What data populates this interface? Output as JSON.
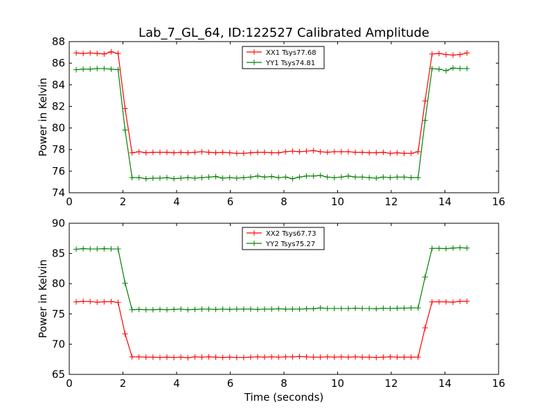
{
  "title": "Lab_7_GL_64, ID:122527 Calibrated Amplitude",
  "chart_data": [
    {
      "type": "line",
      "title": "Lab_7_GL_64, ID:122527 Calibrated Amplitude",
      "xlabel": "",
      "ylabel": "Power in Kelvin",
      "xlim": [
        0,
        16
      ],
      "ylim": [
        74,
        88
      ],
      "xticks": [
        0,
        2,
        4,
        6,
        8,
        10,
        12,
        14,
        16
      ],
      "yticks": [
        74,
        76,
        78,
        80,
        82,
        84,
        86,
        88
      ],
      "grid": false,
      "legend_position": "top-center",
      "x": [
        0.26,
        0.52,
        0.78,
        1.04,
        1.3,
        1.56,
        1.82,
        2.08,
        2.34,
        2.6,
        2.86,
        3.12,
        3.38,
        3.64,
        3.9,
        4.16,
        4.42,
        4.68,
        4.94,
        5.2,
        5.46,
        5.72,
        5.98,
        6.24,
        6.5,
        6.76,
        7.02,
        7.28,
        7.54,
        7.8,
        8.06,
        8.32,
        8.58,
        8.84,
        9.1,
        9.36,
        9.62,
        9.88,
        10.14,
        10.4,
        10.66,
        10.92,
        11.18,
        11.44,
        11.7,
        11.96,
        12.22,
        12.48,
        12.74,
        13.0,
        13.26,
        13.52,
        13.78,
        14.04,
        14.3,
        14.56,
        14.82
      ],
      "series": [
        {
          "name": "XX1 Tsys77.68",
          "color": "#ff0000",
          "values": [
            86.95,
            86.9,
            86.95,
            86.9,
            86.85,
            87.05,
            86.9,
            81.8,
            77.7,
            77.8,
            77.7,
            77.75,
            77.75,
            77.75,
            77.7,
            77.75,
            77.7,
            77.75,
            77.8,
            77.75,
            77.7,
            77.75,
            77.7,
            77.65,
            77.65,
            77.7,
            77.75,
            77.75,
            77.7,
            77.7,
            77.8,
            77.85,
            77.8,
            77.85,
            77.9,
            77.8,
            77.75,
            77.8,
            77.8,
            77.8,
            77.75,
            77.75,
            77.7,
            77.7,
            77.75,
            77.65,
            77.7,
            77.65,
            77.65,
            77.8,
            82.5,
            86.85,
            86.9,
            86.8,
            86.75,
            86.8,
            86.95
          ]
        },
        {
          "name": "YY1 Tsys74.81",
          "color": "#008000",
          "values": [
            85.4,
            85.45,
            85.45,
            85.5,
            85.5,
            85.45,
            85.4,
            79.8,
            75.4,
            75.4,
            75.3,
            75.35,
            75.35,
            75.4,
            75.3,
            75.35,
            75.4,
            75.35,
            75.4,
            75.45,
            75.5,
            75.35,
            75.4,
            75.35,
            75.4,
            75.45,
            75.55,
            75.45,
            75.5,
            75.4,
            75.45,
            75.3,
            75.45,
            75.55,
            75.55,
            75.6,
            75.45,
            75.4,
            75.45,
            75.55,
            75.45,
            75.45,
            75.4,
            75.35,
            75.45,
            75.4,
            75.45,
            75.45,
            75.4,
            75.4,
            80.7,
            85.5,
            85.45,
            85.3,
            85.55,
            85.5,
            85.5
          ]
        }
      ]
    },
    {
      "type": "line",
      "title": "",
      "xlabel": "Time (seconds)",
      "ylabel": "Power in Kelvin",
      "xlim": [
        0,
        16
      ],
      "ylim": [
        65,
        90
      ],
      "xticks": [
        0,
        2,
        4,
        6,
        8,
        10,
        12,
        14,
        16
      ],
      "yticks": [
        65,
        70,
        75,
        80,
        85,
        90
      ],
      "grid": false,
      "legend_position": "top-center",
      "x": [
        0.26,
        0.52,
        0.78,
        1.04,
        1.3,
        1.56,
        1.82,
        2.08,
        2.34,
        2.6,
        2.86,
        3.12,
        3.38,
        3.64,
        3.9,
        4.16,
        4.42,
        4.68,
        4.94,
        5.2,
        5.46,
        5.72,
        5.98,
        6.24,
        6.5,
        6.76,
        7.02,
        7.28,
        7.54,
        7.8,
        8.06,
        8.32,
        8.58,
        8.84,
        9.1,
        9.36,
        9.62,
        9.88,
        10.14,
        10.4,
        10.66,
        10.92,
        11.18,
        11.44,
        11.7,
        11.96,
        12.22,
        12.48,
        12.74,
        13.0,
        13.26,
        13.52,
        13.78,
        14.04,
        14.3,
        14.56,
        14.82
      ],
      "series": [
        {
          "name": "XX2 Tsys67.73",
          "color": "#ff0000",
          "values": [
            77.0,
            77.1,
            77.05,
            76.95,
            77.0,
            77.05,
            76.9,
            71.7,
            67.9,
            67.9,
            67.85,
            67.85,
            67.8,
            67.85,
            67.8,
            67.85,
            67.75,
            67.9,
            67.85,
            67.9,
            67.85,
            67.8,
            67.85,
            67.8,
            67.8,
            67.85,
            67.9,
            67.85,
            67.9,
            67.85,
            67.9,
            67.9,
            67.95,
            67.9,
            67.85,
            67.85,
            67.9,
            67.85,
            67.9,
            67.85,
            67.9,
            67.85,
            67.85,
            67.8,
            67.85,
            67.9,
            67.85,
            67.85,
            67.85,
            67.85,
            72.7,
            77.0,
            77.0,
            77.0,
            76.95,
            77.1,
            77.1
          ]
        },
        {
          "name": "YY2 Tsys75.27",
          "color": "#008000",
          "values": [
            85.7,
            85.8,
            85.75,
            85.75,
            85.8,
            85.75,
            85.75,
            80.1,
            75.7,
            75.75,
            75.7,
            75.7,
            75.75,
            75.7,
            75.75,
            75.8,
            75.7,
            75.75,
            75.8,
            75.8,
            75.75,
            75.8,
            75.75,
            75.8,
            75.8,
            75.8,
            75.75,
            75.8,
            75.8,
            75.85,
            75.8,
            75.8,
            75.8,
            75.85,
            75.85,
            76.0,
            75.9,
            75.9,
            75.9,
            75.9,
            75.95,
            75.9,
            75.9,
            75.85,
            75.95,
            75.9,
            75.95,
            75.95,
            76.0,
            76.0,
            81.1,
            85.85,
            85.85,
            85.8,
            85.9,
            85.95,
            85.9
          ]
        }
      ]
    }
  ]
}
